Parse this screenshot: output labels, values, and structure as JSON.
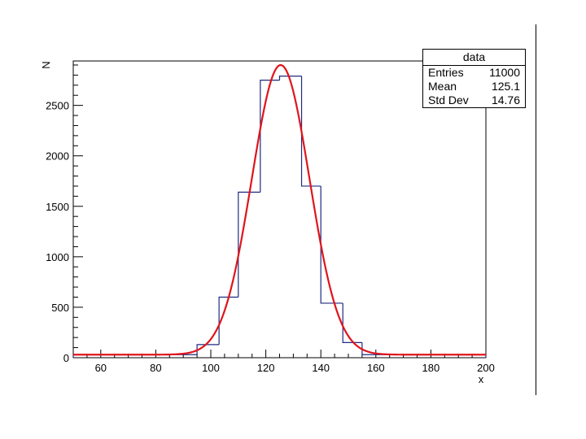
{
  "chart_data": {
    "type": "histogram",
    "xlabel": "x",
    "ylabel": "N",
    "xlim": [
      50,
      200
    ],
    "ylim": [
      0,
      2940
    ],
    "x_ticks": [
      60,
      80,
      100,
      120,
      140,
      160,
      180,
      200
    ],
    "y_ticks": [
      0,
      500,
      1000,
      1500,
      2000,
      2500
    ],
    "bin_edges": [
      50,
      95,
      103,
      110,
      118,
      125,
      133,
      140,
      148,
      155,
      200
    ],
    "counts": [
      30,
      130,
      600,
      1640,
      2750,
      2790,
      1700,
      540,
      150,
      30
    ],
    "fit": {
      "type": "gaussian",
      "constant": 2900,
      "mean": 125.4,
      "sigma": 10.5,
      "baseline": 30,
      "color": "#e0141b"
    },
    "histogram_color": "#1f2a80",
    "stats": {
      "title": "data",
      "rows": [
        {
          "label": "Entries",
          "value": "11000"
        },
        {
          "label": "Mean",
          "value": "125.1"
        },
        {
          "label": "Std Dev",
          "value": "14.76"
        }
      ]
    }
  }
}
